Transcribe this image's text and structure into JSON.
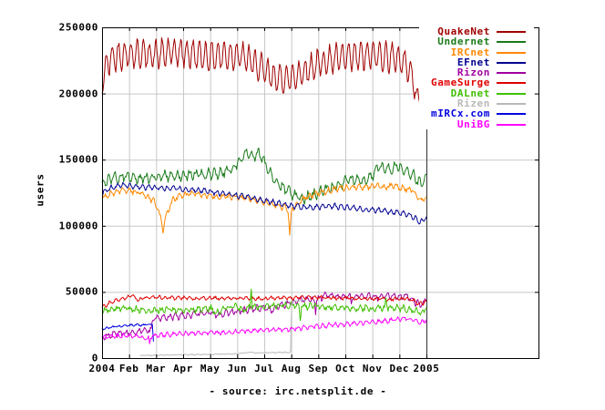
{
  "figure": {
    "ylabel": "users",
    "caption": "- source: irc.netsplit.de -",
    "background": "#ffffff",
    "grid_color": "#c8c8c8",
    "border_color": "#000000",
    "year_line_color": "#303030",
    "text_color": "#000000"
  },
  "chart_data": {
    "type": "line",
    "title": "",
    "xlabel": "",
    "ylabel": "users",
    "caption": "- source: irc.netsplit.de -",
    "grid": true,
    "legend_position": "top-right-inside",
    "ylim": [
      0,
      250000
    ],
    "y_ticks": [
      0,
      50000,
      100000,
      150000,
      200000,
      250000
    ],
    "y_tick_labels": [
      "0",
      "50000",
      "100000",
      "150000",
      "200000",
      "250000"
    ],
    "x_tick_labels": [
      "2004",
      "Feb",
      "Mar",
      "Apr",
      "May",
      "Jun",
      "Jul",
      "Aug",
      "Sep",
      "Oct",
      "Nov",
      "Dec",
      "2005"
    ],
    "x_data_months": 12,
    "x_axis_total_months": 16.15,
    "series": [
      {
        "name": "QuakeNet",
        "color": "#a00000",
        "wave": 10000,
        "noise": 3000,
        "points": [
          [
            0,
            206000
          ],
          [
            0.1,
            218000
          ],
          [
            0.3,
            226000
          ],
          [
            0.6,
            229000
          ],
          [
            1,
            230000
          ],
          [
            1.5,
            230000
          ],
          [
            2,
            229000
          ],
          [
            2.5,
            231000
          ],
          [
            3,
            231000
          ],
          [
            3.5,
            229000
          ],
          [
            4,
            228000
          ],
          [
            4.5,
            229000
          ],
          [
            5,
            229000
          ],
          [
            5.4,
            226000
          ],
          [
            5.8,
            220000
          ],
          [
            6.2,
            214000
          ],
          [
            6.6,
            211000
          ],
          [
            7,
            212000
          ],
          [
            7.4,
            216000
          ],
          [
            7.8,
            220000
          ],
          [
            8.2,
            224000
          ],
          [
            8.6,
            226000
          ],
          [
            9,
            227000
          ],
          [
            9.5,
            228000
          ],
          [
            10,
            229000
          ],
          [
            10.5,
            228000
          ],
          [
            11,
            226000
          ],
          [
            11.3,
            221000
          ],
          [
            11.5,
            212000
          ],
          [
            11.65,
            192000
          ],
          [
            11.78,
            208000
          ],
          [
            12,
            215000
          ]
        ]
      },
      {
        "name": "Undernet",
        "color": "#1a7a1a",
        "wave": 3000,
        "noise": 2200,
        "points": [
          [
            0,
            132000
          ],
          [
            0.4,
            136000
          ],
          [
            0.8,
            137000
          ],
          [
            1.2,
            136000
          ],
          [
            1.6,
            136000
          ],
          [
            2,
            137000
          ],
          [
            2.5,
            138000
          ],
          [
            3,
            138000
          ],
          [
            3.5,
            139000
          ],
          [
            4,
            139000
          ],
          [
            4.4,
            140000
          ],
          [
            4.8,
            143000
          ],
          [
            5.1,
            149000
          ],
          [
            5.35,
            155000
          ],
          [
            5.6,
            151000
          ],
          [
            5.8,
            156000
          ],
          [
            6,
            148000
          ],
          [
            6.2,
            140000
          ],
          [
            6.5,
            132000
          ],
          [
            6.8,
            127000
          ],
          [
            7.1,
            123000
          ],
          [
            7.4,
            120000
          ],
          [
            7.7,
            122000
          ],
          [
            8,
            125000
          ],
          [
            8.5,
            129000
          ],
          [
            9,
            133000
          ],
          [
            9.4,
            136000
          ],
          [
            9.7,
            134000
          ],
          [
            10,
            138000
          ],
          [
            10.3,
            145000
          ],
          [
            10.6,
            142000
          ],
          [
            10.9,
            146000
          ],
          [
            11.2,
            141000
          ],
          [
            11.5,
            139000
          ],
          [
            11.8,
            131000
          ],
          [
            12,
            139000
          ]
        ]
      },
      {
        "name": "IRCnet",
        "color": "#ff8800",
        "wave": 1500,
        "noise": 1500,
        "points": [
          [
            0,
            121000
          ],
          [
            0.4,
            125000
          ],
          [
            0.8,
            127000
          ],
          [
            1.2,
            126000
          ],
          [
            1.6,
            123000
          ],
          [
            1.9,
            119000
          ],
          [
            2.1,
            111000
          ],
          [
            2.25,
            97000
          ],
          [
            2.4,
            109000
          ],
          [
            2.6,
            119000
          ],
          [
            2.9,
            123000
          ],
          [
            3.3,
            124000
          ],
          [
            3.8,
            123000
          ],
          [
            4.3,
            122000
          ],
          [
            4.8,
            122000
          ],
          [
            5.3,
            121000
          ],
          [
            5.8,
            119000
          ],
          [
            6.2,
            117000
          ],
          [
            6.5,
            115000
          ],
          [
            6.88,
            113000
          ],
          [
            6.94,
            94000
          ],
          [
            7.02,
            112000
          ],
          [
            7.3,
            118000
          ],
          [
            7.6,
            122000
          ],
          [
            8,
            125000
          ],
          [
            8.5,
            127000
          ],
          [
            9,
            129000
          ],
          [
            9.5,
            129000
          ],
          [
            10,
            130000
          ],
          [
            10.4,
            129000
          ],
          [
            10.8,
            130000
          ],
          [
            11.2,
            128000
          ],
          [
            11.5,
            127000
          ],
          [
            11.8,
            119000
          ],
          [
            12,
            122000
          ]
        ]
      },
      {
        "name": "EFnet",
        "color": "#000090",
        "wave": 1600,
        "noise": 1000,
        "points": [
          [
            0,
            125000
          ],
          [
            0.4,
            129000
          ],
          [
            0.8,
            131000
          ],
          [
            1.2,
            130000
          ],
          [
            1.6,
            129000
          ],
          [
            2,
            129000
          ],
          [
            2.5,
            128000
          ],
          [
            3,
            128000
          ],
          [
            3.5,
            127000
          ],
          [
            4,
            126000
          ],
          [
            4.5,
            124000
          ],
          [
            5,
            123000
          ],
          [
            5.5,
            121000
          ],
          [
            6,
            119000
          ],
          [
            6.5,
            117000
          ],
          [
            7,
            115000
          ],
          [
            7.5,
            114000
          ],
          [
            8,
            114000
          ],
          [
            8.5,
            115000
          ],
          [
            9,
            114000
          ],
          [
            9.5,
            113000
          ],
          [
            10,
            112000
          ],
          [
            10.5,
            111000
          ],
          [
            11,
            110000
          ],
          [
            11.4,
            108000
          ],
          [
            11.7,
            104000
          ],
          [
            11.85,
            103000
          ],
          [
            12,
            107000
          ]
        ]
      },
      {
        "name": "Rizon",
        "color": "#a000a0",
        "wave": 1800,
        "noise": 1500,
        "points": [
          [
            0,
            16000
          ],
          [
            0.4,
            17500
          ],
          [
            0.8,
            19000
          ],
          [
            1.2,
            20000
          ],
          [
            1.6,
            20500
          ],
          [
            1.82,
            21000
          ],
          [
            1.88,
            29000
          ],
          [
            2.1,
            30000
          ],
          [
            2.5,
            31000
          ],
          [
            3,
            32000
          ],
          [
            3.5,
            33500
          ],
          [
            4,
            34000
          ],
          [
            4.3,
            32500
          ],
          [
            4.7,
            34500
          ],
          [
            5,
            35500
          ],
          [
            5.5,
            37000
          ],
          [
            6,
            38500
          ],
          [
            6.3,
            36500
          ],
          [
            6.6,
            39500
          ],
          [
            7,
            42000
          ],
          [
            7.4,
            44500
          ],
          [
            7.86,
            44000
          ],
          [
            7.9,
            35500
          ],
          [
            7.94,
            44500
          ],
          [
            8.3,
            47500
          ],
          [
            8.6,
            46000
          ],
          [
            9,
            47000
          ],
          [
            9.18,
            46500
          ],
          [
            9.22,
            41000
          ],
          [
            9.26,
            46500
          ],
          [
            9.8,
            47000
          ],
          [
            10.2,
            46000
          ],
          [
            10.6,
            47500
          ],
          [
            11,
            46000
          ],
          [
            11.3,
            47000
          ],
          [
            11.6,
            42000
          ],
          [
            11.8,
            40000
          ],
          [
            12,
            43000
          ]
        ]
      },
      {
        "name": "GameSurge",
        "color": "#e00000",
        "wave": 900,
        "noise": 900,
        "points": [
          [
            0,
            38000
          ],
          [
            0.3,
            42000
          ],
          [
            0.6,
            44000
          ],
          [
            0.9,
            45500
          ],
          [
            1.15,
            48000
          ],
          [
            1.3,
            43500
          ],
          [
            1.5,
            45500
          ],
          [
            2,
            46000
          ],
          [
            2.5,
            45500
          ],
          [
            3,
            45500
          ],
          [
            3.5,
            45000
          ],
          [
            4,
            45500
          ],
          [
            4.5,
            45000
          ],
          [
            5,
            45500
          ],
          [
            5.5,
            45000
          ],
          [
            6,
            45000
          ],
          [
            6.5,
            45500
          ],
          [
            7,
            45500
          ],
          [
            7.5,
            46000
          ],
          [
            8,
            46000
          ],
          [
            8.5,
            45500
          ],
          [
            9,
            45500
          ],
          [
            9.5,
            45000
          ],
          [
            10,
            45000
          ],
          [
            10.5,
            44500
          ],
          [
            11,
            45000
          ],
          [
            11.4,
            44500
          ],
          [
            11.7,
            41500
          ],
          [
            11.85,
            41000
          ],
          [
            12,
            44000
          ]
        ]
      },
      {
        "name": "DALnet",
        "color": "#3fbf00",
        "wave": 1500,
        "noise": 1800,
        "points": [
          [
            0,
            36000
          ],
          [
            0.5,
            37000
          ],
          [
            1,
            37500
          ],
          [
            1.5,
            36500
          ],
          [
            2,
            36000
          ],
          [
            2.5,
            36500
          ],
          [
            3,
            36000
          ],
          [
            3.5,
            37000
          ],
          [
            4,
            37500
          ],
          [
            4.3,
            34000
          ],
          [
            4.6,
            38000
          ],
          [
            5,
            38500
          ],
          [
            5.3,
            36000
          ],
          [
            5.47,
            38500
          ],
          [
            5.52,
            52000
          ],
          [
            5.56,
            38500
          ],
          [
            6,
            39000
          ],
          [
            6.5,
            39500
          ],
          [
            7,
            40000
          ],
          [
            7.28,
            39500
          ],
          [
            7.33,
            29500
          ],
          [
            7.38,
            39000
          ],
          [
            7.8,
            39500
          ],
          [
            8.2,
            38500
          ],
          [
            8.6,
            38000
          ],
          [
            9,
            38500
          ],
          [
            9.4,
            37500
          ],
          [
            9.8,
            38000
          ],
          [
            10.2,
            37500
          ],
          [
            10.45,
            38000
          ],
          [
            10.5,
            43500
          ],
          [
            10.55,
            38000
          ],
          [
            11,
            38000
          ],
          [
            11.4,
            37000
          ],
          [
            11.8,
            34500
          ],
          [
            12,
            38000
          ]
        ]
      },
      {
        "name": "Rizen",
        "color": "#b8b8b8",
        "wave": 180,
        "noise": 250,
        "points": [
          [
            1.4,
            1800
          ],
          [
            2,
            2200
          ],
          [
            3,
            2500
          ],
          [
            4,
            2800
          ],
          [
            5,
            3200
          ],
          [
            5.5,
            4500
          ],
          [
            5.7,
            3800
          ],
          [
            6,
            4000
          ],
          [
            6.5,
            4200
          ],
          [
            6.97,
            4200
          ],
          [
            7.02,
            43000
          ],
          [
            7.3,
            43500
          ],
          [
            7.55,
            43500
          ]
        ]
      },
      {
        "name": "mIRCx.com",
        "color": "#0000e0",
        "wave": 500,
        "noise": 600,
        "points": [
          [
            0,
            22000
          ],
          [
            0.4,
            23500
          ],
          [
            0.8,
            24500
          ],
          [
            1.2,
            25000
          ],
          [
            1.5,
            25000
          ],
          [
            1.8,
            25500
          ],
          [
            1.86,
            25500
          ],
          [
            1.9,
            12500
          ]
        ]
      },
      {
        "name": "UniBG",
        "color": "#ff00ff",
        "wave": 1200,
        "noise": 1000,
        "points": [
          [
            0,
            15500
          ],
          [
            0.4,
            16500
          ],
          [
            0.8,
            17000
          ],
          [
            1.2,
            16500
          ],
          [
            1.5,
            15500
          ],
          [
            1.72,
            15000
          ],
          [
            1.76,
            11000
          ],
          [
            1.8,
            16500
          ],
          [
            2.2,
            17500
          ],
          [
            2.6,
            18000
          ],
          [
            3,
            18500
          ],
          [
            3.5,
            19000
          ],
          [
            4,
            19500
          ],
          [
            4.5,
            19000
          ],
          [
            5,
            20000
          ],
          [
            5.5,
            20500
          ],
          [
            6,
            21000
          ],
          [
            6.5,
            21500
          ],
          [
            7,
            22000
          ],
          [
            7.5,
            23000
          ],
          [
            8,
            24000
          ],
          [
            8.5,
            25000
          ],
          [
            9,
            25500
          ],
          [
            9.5,
            26500
          ],
          [
            10,
            27000
          ],
          [
            10.5,
            28000
          ],
          [
            11,
            29500
          ],
          [
            11.3,
            30000
          ],
          [
            11.6,
            28000
          ],
          [
            11.8,
            26500
          ],
          [
            12,
            29000
          ]
        ]
      }
    ]
  }
}
